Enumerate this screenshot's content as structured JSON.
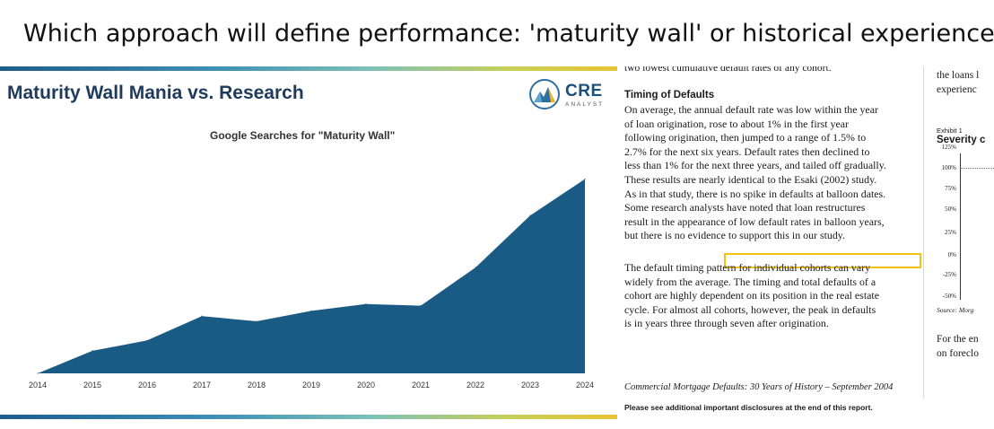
{
  "question": "Which approach will define performance: 'maturity wall' or historical experience?",
  "slide": {
    "title": "Maturity Wall Mania vs. Research",
    "logo": {
      "name": "CRE",
      "subtitle": "ANALYST"
    },
    "colors": {
      "area": "#1a5b86",
      "title": "#1e3a5c",
      "gradient_start": "#1c5d8e",
      "gradient_end": "#e8c531"
    }
  },
  "chart_data": {
    "type": "area",
    "title": "Google Searches for \"Maturity Wall\"",
    "x": [
      "2014",
      "2015",
      "2016",
      "2017",
      "2018",
      "2019",
      "2020",
      "2021",
      "2022",
      "2023",
      "2024"
    ],
    "series": [
      {
        "values": [
          0,
          13,
          19,
          33,
          30,
          36,
          40,
          39,
          61,
          91,
          112
        ]
      }
    ],
    "xlabel": "",
    "ylabel": "",
    "ylim": [
      0,
      120
    ],
    "grid": false,
    "legend": "none"
  },
  "doc": {
    "cut_line": "two lowest cumulative default rates of any cohort.",
    "heading": "Timing of Defaults",
    "para1": [
      "On average, the annual default rate was low within the year",
      "of loan origination, rose to about 1% in the first year",
      "following origination, then jumped to a range of 1.5% to",
      "2.7% for the next six years.  Default rates then declined to",
      "less than 1% for the next three years, and tailed off gradually.",
      "These results are nearly identical to the Esaki (2002) study.",
      "As in that study, there is no spike in defaults at balloon dates.",
      "Some research analysts have noted that loan restructures",
      "result in the appearance of low default rates in balloon years,",
      "but there is no evidence to support this in our study."
    ],
    "para2": [
      "The default timing pattern for individual cohorts can vary",
      "widely from the average.  The timing and total defaults of a",
      "cohort are highly dependent on its position in the real estate",
      "cycle.  For almost all cohorts, however, the peak in defaults",
      "is in years three through seven after origination."
    ],
    "footer": "Commercial Mortgage Defaults:  30 Years of History – September 2004",
    "disclosure": "Please see additional important disclosures at the end of this report."
  },
  "right_fragment": {
    "line1": "the loans l",
    "line2": "experienc",
    "exhibit": "Exhibit 1",
    "severity": "Severity c",
    "ticks": [
      "125%",
      "100%",
      "75%",
      "50%",
      "25%",
      "0%",
      "-25%",
      "-50%"
    ],
    "source": "Source: Morg",
    "line3": "For the en",
    "line4": "on foreclo"
  }
}
